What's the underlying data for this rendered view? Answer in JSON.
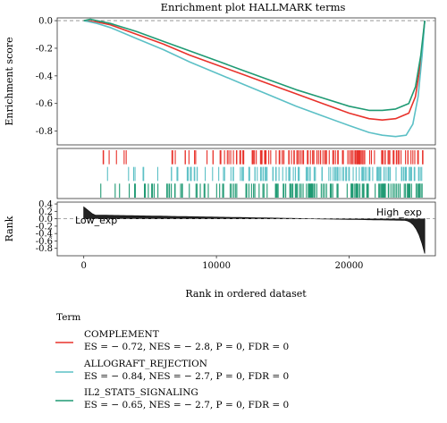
{
  "chart_data": {
    "type": "line",
    "title": "Enrichment plot HALLMARK terms",
    "ylabel": "Enrichment score",
    "ylim": [
      -0.9,
      0.02
    ],
    "yticks": [
      "0.0",
      "-0.2",
      "-0.4",
      "-0.6",
      "-0.8"
    ],
    "xlabel": "Rank in ordered dataset",
    "xlim": [
      -2000,
      26500
    ],
    "xticks": [
      0,
      10000,
      20000
    ],
    "xtick_labels": [
      "0",
      "10000",
      "20000"
    ],
    "rank_ylabel": "Rank",
    "rank_ylim": [
      -1.0,
      0.45
    ],
    "rank_yticks": [
      "0.4",
      "0.2",
      "0.0",
      "-0.2",
      "-0.4",
      "-0.6",
      "-0.8"
    ],
    "rank_annotations": [
      "Low_exp",
      "High_exp"
    ],
    "grid": false,
    "legend_position": "bottom-left",
    "legend_title": "Term",
    "series": [
      {
        "name": "COMPLEMENT",
        "stats": "ES = − 0.72, NES = − 2.8, P = 0, FDR = 0",
        "color": "#e8322b",
        "x": [
          0,
          1000,
          2000,
          4000,
          6000,
          8000,
          10000,
          12000,
          14000,
          16000,
          18000,
          20000,
          21500,
          22500,
          23500,
          24500,
          25000,
          25400,
          25700
        ],
        "y": [
          0.0,
          -0.01,
          -0.03,
          -0.1,
          -0.17,
          -0.25,
          -0.32,
          -0.39,
          -0.46,
          -0.53,
          -0.6,
          -0.67,
          -0.71,
          -0.72,
          -0.71,
          -0.67,
          -0.55,
          -0.3,
          0.0
        ]
      },
      {
        "name": "ALLOGRAFT_REJECTION",
        "stats": "ES = − 0.84, NES = − 2.7, P = 0, FDR = 0",
        "color": "#5cc0c6",
        "x": [
          0,
          1000,
          2000,
          4000,
          6000,
          8000,
          10000,
          12000,
          14000,
          16000,
          18000,
          20000,
          21500,
          22500,
          23500,
          24300,
          24800,
          25200,
          25500,
          25700
        ],
        "y": [
          0.0,
          -0.02,
          -0.05,
          -0.13,
          -0.21,
          -0.3,
          -0.38,
          -0.46,
          -0.54,
          -0.62,
          -0.69,
          -0.76,
          -0.81,
          -0.83,
          -0.84,
          -0.83,
          -0.75,
          -0.55,
          -0.25,
          0.0
        ]
      },
      {
        "name": "IL2_STAT5_SIGNALING",
        "stats": "ES = − 0.65, NES = − 2.7, P = 0, FDR = 0",
        "color": "#1f9a73",
        "x": [
          0,
          500,
          1000,
          2000,
          4000,
          6000,
          8000,
          10000,
          12000,
          14000,
          16000,
          18000,
          20000,
          21500,
          22500,
          23500,
          24500,
          25000,
          25400,
          25700
        ],
        "y": [
          0.0,
          0.01,
          0.0,
          -0.02,
          -0.08,
          -0.15,
          -0.22,
          -0.29,
          -0.36,
          -0.43,
          -0.5,
          -0.56,
          -0.62,
          -0.65,
          -0.65,
          -0.64,
          -0.6,
          -0.48,
          -0.25,
          0.0
        ]
      }
    ]
  }
}
